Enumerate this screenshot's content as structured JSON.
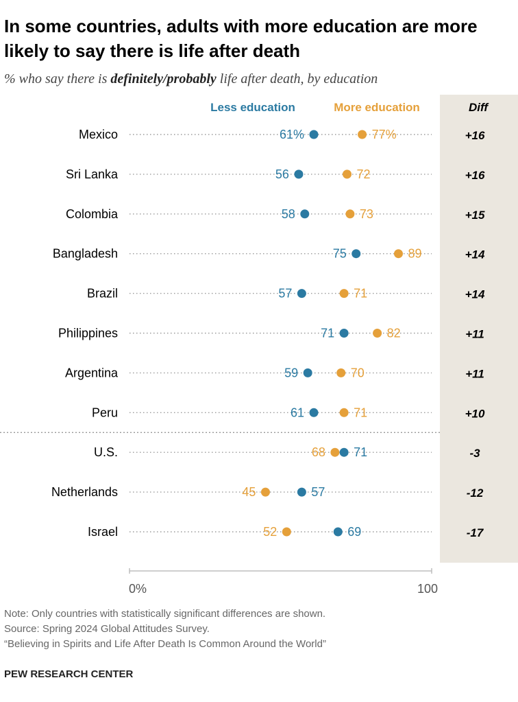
{
  "title": "In some countries, adults with more education are more likely to say there is life after death",
  "subtitle": {
    "prefix": "% who say there is ",
    "emphasis": "definitely/probably",
    "suffix": " life after death, by education"
  },
  "chart_data": {
    "type": "dot",
    "title": "In some countries, adults with more education are more likely to say there is life after death",
    "legend": {
      "less": "Less education",
      "more": "More education",
      "diff": "Diff"
    },
    "colors": {
      "less": "#2b7aa2",
      "more": "#e5a03a",
      "diff_bg": "#ebe7df"
    },
    "xlim": [
      0,
      100
    ],
    "ticks": [
      {
        "value": 0,
        "label": "0%"
      },
      {
        "value": 100,
        "label": "100"
      }
    ],
    "groups_split_after": 8,
    "rows": [
      {
        "country": "Mexico",
        "less": 61,
        "more": 77,
        "less_label": "61%",
        "more_label": "77%",
        "diff": "+16"
      },
      {
        "country": "Sri Lanka",
        "less": 56,
        "more": 72,
        "less_label": "56",
        "more_label": "72",
        "diff": "+16"
      },
      {
        "country": "Colombia",
        "less": 58,
        "more": 73,
        "less_label": "58",
        "more_label": "73",
        "diff": "+15"
      },
      {
        "country": "Bangladesh",
        "less": 75,
        "more": 89,
        "less_label": "75",
        "more_label": "89",
        "diff": "+14"
      },
      {
        "country": "Brazil",
        "less": 57,
        "more": 71,
        "less_label": "57",
        "more_label": "71",
        "diff": "+14"
      },
      {
        "country": "Philippines",
        "less": 71,
        "more": 82,
        "less_label": "71",
        "more_label": "82",
        "diff": "+11"
      },
      {
        "country": "Argentina",
        "less": 59,
        "more": 70,
        "less_label": "59",
        "more_label": "70",
        "diff": "+11"
      },
      {
        "country": "Peru",
        "less": 61,
        "more": 71,
        "less_label": "61",
        "more_label": "71",
        "diff": "+10"
      },
      {
        "country": "U.S.",
        "less": 71,
        "more": 68,
        "less_label": "71",
        "more_label": "68",
        "diff": "-3"
      },
      {
        "country": "Netherlands",
        "less": 57,
        "more": 45,
        "less_label": "57",
        "more_label": "45",
        "diff": "-12"
      },
      {
        "country": "Israel",
        "less": 69,
        "more": 52,
        "less_label": "69",
        "more_label": "52",
        "diff": "-17"
      }
    ]
  },
  "notes": {
    "note": "Note: Only countries with statistically significant differences are shown.",
    "source": "Source: Spring 2024 Global Attitudes Survey.",
    "report": "“Believing in Spirits and Life After Death Is Common Around the World”"
  },
  "org": "PEW RESEARCH CENTER"
}
